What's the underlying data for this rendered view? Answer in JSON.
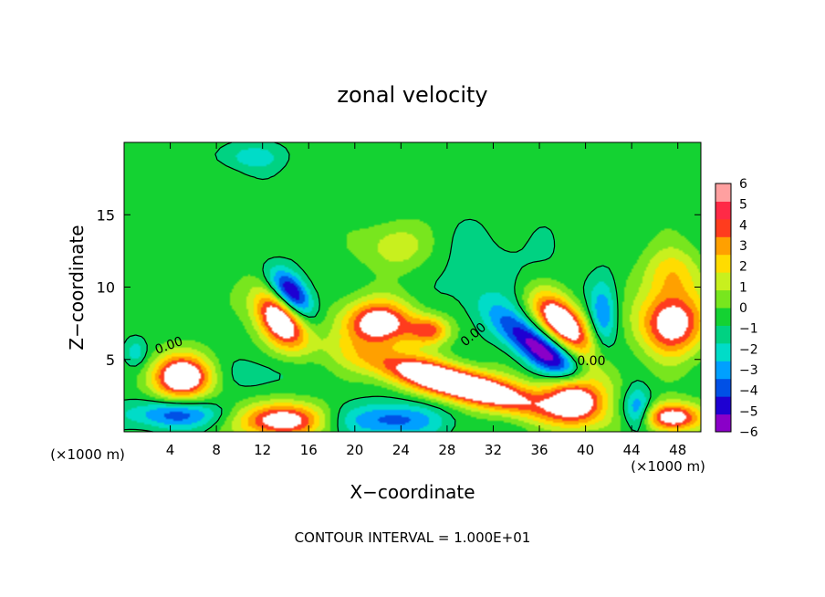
{
  "chart_data": {
    "type": "heatmap",
    "title": "zonal velocity",
    "xlabel": "X−coordinate",
    "ylabel": "Z−coordinate",
    "x_unit_left": "(×1000 m)",
    "x_unit_right": "(×1000 m)",
    "footer": "CONTOUR INTERVAL = 1.000E+01",
    "xlim": [
      0,
      50
    ],
    "ylim": [
      0,
      20
    ],
    "x_ticks": [
      4,
      8,
      12,
      16,
      20,
      24,
      28,
      32,
      36,
      40,
      44,
      48
    ],
    "x_tick_labels": [
      "4",
      "8",
      "12",
      "16",
      "20",
      "24",
      "28",
      "32",
      "36",
      "40",
      "44",
      "48"
    ],
    "y_ticks": [
      5,
      10,
      15
    ],
    "y_tick_labels": [
      "5",
      "10",
      "15"
    ],
    "background_value": 0.5,
    "saturation_color": "#ffffff",
    "colorbar": {
      "levels": [
        -6,
        -5,
        -4,
        -3,
        -2,
        -1,
        0,
        1,
        2,
        3,
        4,
        5,
        6
      ],
      "labels": [
        "−6",
        "−5",
        "−4",
        "−3",
        "−2",
        "−1",
        "0",
        "1",
        "2",
        "3",
        "4",
        "5",
        "6"
      ],
      "colors": [
        "#8a00c8",
        "#1e00d2",
        "#0050e6",
        "#00a0ff",
        "#00dcc8",
        "#00d282",
        "#14d232",
        "#78e61e",
        "#c8f01e",
        "#ffdc00",
        "#ffa000",
        "#ff3c1e",
        "#ff2a46",
        "#ffa0a0"
      ]
    },
    "features": [
      {
        "x": 13.5,
        "z": 7.8,
        "rx": 2.6,
        "rz": 1.6,
        "rot": -40,
        "value": 8
      },
      {
        "x": 14.5,
        "z": 9.5,
        "rx": 2.2,
        "rz": 1.2,
        "rot": -40,
        "value": -7
      },
      {
        "x": 22.0,
        "z": 7.5,
        "rx": 3.2,
        "rz": 1.6,
        "rot": 0,
        "value": 7
      },
      {
        "x": 26.5,
        "z": 7.0,
        "rx": 1.8,
        "rz": 1.0,
        "rot": 0,
        "value": 4.5
      },
      {
        "x": 23.5,
        "z": 12.8,
        "rx": 2.6,
        "rz": 1.6,
        "rot": 0,
        "value": 2.5
      },
      {
        "x": 29.0,
        "z": 3.3,
        "rx": 8.0,
        "rz": 1.2,
        "rot": -12,
        "value": 9
      },
      {
        "x": 36.5,
        "z": 5.5,
        "rx": 5.0,
        "rz": 1.3,
        "rot": -30,
        "value": -6.5
      },
      {
        "x": 38.0,
        "z": 7.5,
        "rx": 3.0,
        "rz": 1.5,
        "rot": -35,
        "value": 8
      },
      {
        "x": 5.0,
        "z": 3.8,
        "rx": 2.6,
        "rz": 1.5,
        "rot": 0,
        "value": 8
      },
      {
        "x": 4.5,
        "z": 1.2,
        "rx": 4.5,
        "rz": 1.0,
        "rot": 0,
        "value": -4
      },
      {
        "x": 13.5,
        "z": 0.8,
        "rx": 3.8,
        "rz": 1.2,
        "rot": 0,
        "value": 7
      },
      {
        "x": 23.0,
        "z": 0.8,
        "rx": 4.5,
        "rz": 1.2,
        "rot": 0,
        "value": -4
      },
      {
        "x": 39.5,
        "z": 2.5,
        "rx": 2.8,
        "rz": 1.8,
        "rot": 0,
        "value": 8
      },
      {
        "x": 47.5,
        "z": 7.5,
        "rx": 2.8,
        "rz": 2.2,
        "rot": 0,
        "value": 7
      },
      {
        "x": 47.5,
        "z": 11.0,
        "rx": 2.5,
        "rz": 1.8,
        "rot": 0,
        "value": 3
      },
      {
        "x": 47.5,
        "z": 1.0,
        "rx": 2.5,
        "rz": 1.0,
        "rot": 0,
        "value": 7
      },
      {
        "x": 44.5,
        "z": 1.5,
        "rx": 1.2,
        "rz": 1.5,
        "rot": 0,
        "value": -4
      },
      {
        "x": 32.0,
        "z": 11.0,
        "rx": 5.0,
        "rz": 3.5,
        "rot": 0,
        "value": -1
      },
      {
        "x": 11.5,
        "z": 4.0,
        "rx": 3.0,
        "rz": 1.2,
        "rot": 0,
        "value": -1.2
      },
      {
        "x": 11.0,
        "z": 19.0,
        "rx": 3.0,
        "rz": 1.0,
        "rot": 0,
        "value": -2
      },
      {
        "x": 41.5,
        "z": 8.0,
        "rx": 1.2,
        "rz": 2.5,
        "rot": 0,
        "value": -3.5
      },
      {
        "x": 1.0,
        "z": 5.5,
        "rx": 1.0,
        "rz": 1.0,
        "rot": 0,
        "value": -2
      }
    ],
    "contour_labels": [
      {
        "text": "0.00",
        "x": 4.0,
        "z": 5.7,
        "rot": -20
      },
      {
        "text": "0.00",
        "x": 30.5,
        "z": 6.5,
        "rot": -40
      },
      {
        "text": "0.00",
        "x": 40.5,
        "z": 4.6,
        "rot": 0
      }
    ]
  }
}
